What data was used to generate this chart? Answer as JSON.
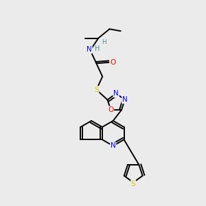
{
  "background_color": "#ebebeb",
  "atom_colors": {
    "C": "#000000",
    "N": "#0000ff",
    "O": "#ff0000",
    "S": "#cccc00",
    "H": "#4a9090"
  },
  "bond_color": "#000000",
  "bond_width": 1.4,
  "figsize": [
    3.0,
    3.0
  ],
  "dpi": 100
}
